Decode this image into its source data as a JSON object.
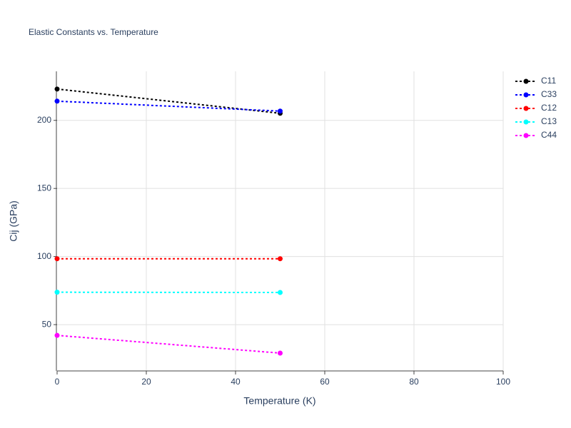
{
  "chart_data": {
    "type": "line",
    "title": "Elastic Constants vs. Temperature",
    "x_label": "Temperature (K)",
    "y_label": "Cij (GPa)",
    "x": [
      0,
      50
    ],
    "series": [
      {
        "name": "C11",
        "color": "#000000",
        "values": [
          223,
          205.2
        ]
      },
      {
        "name": "C33",
        "color": "#0000ff",
        "values": [
          214.1,
          206.8
        ]
      },
      {
        "name": "C12",
        "color": "#ff0000",
        "values": [
          98.4,
          98.4
        ]
      },
      {
        "name": "C13",
        "color": "#00ffff",
        "values": [
          73.8,
          73.6
        ]
      },
      {
        "name": "C44",
        "color": "#ff00ff",
        "values": [
          42.1,
          29.1
        ]
      }
    ],
    "xlim": [
      0,
      100
    ],
    "xticks": [
      0,
      20,
      40,
      60,
      80,
      100
    ],
    "ylim": [
      16,
      236
    ],
    "yticks": [
      50,
      100,
      150,
      200
    ],
    "grid": true,
    "legend": "right"
  }
}
